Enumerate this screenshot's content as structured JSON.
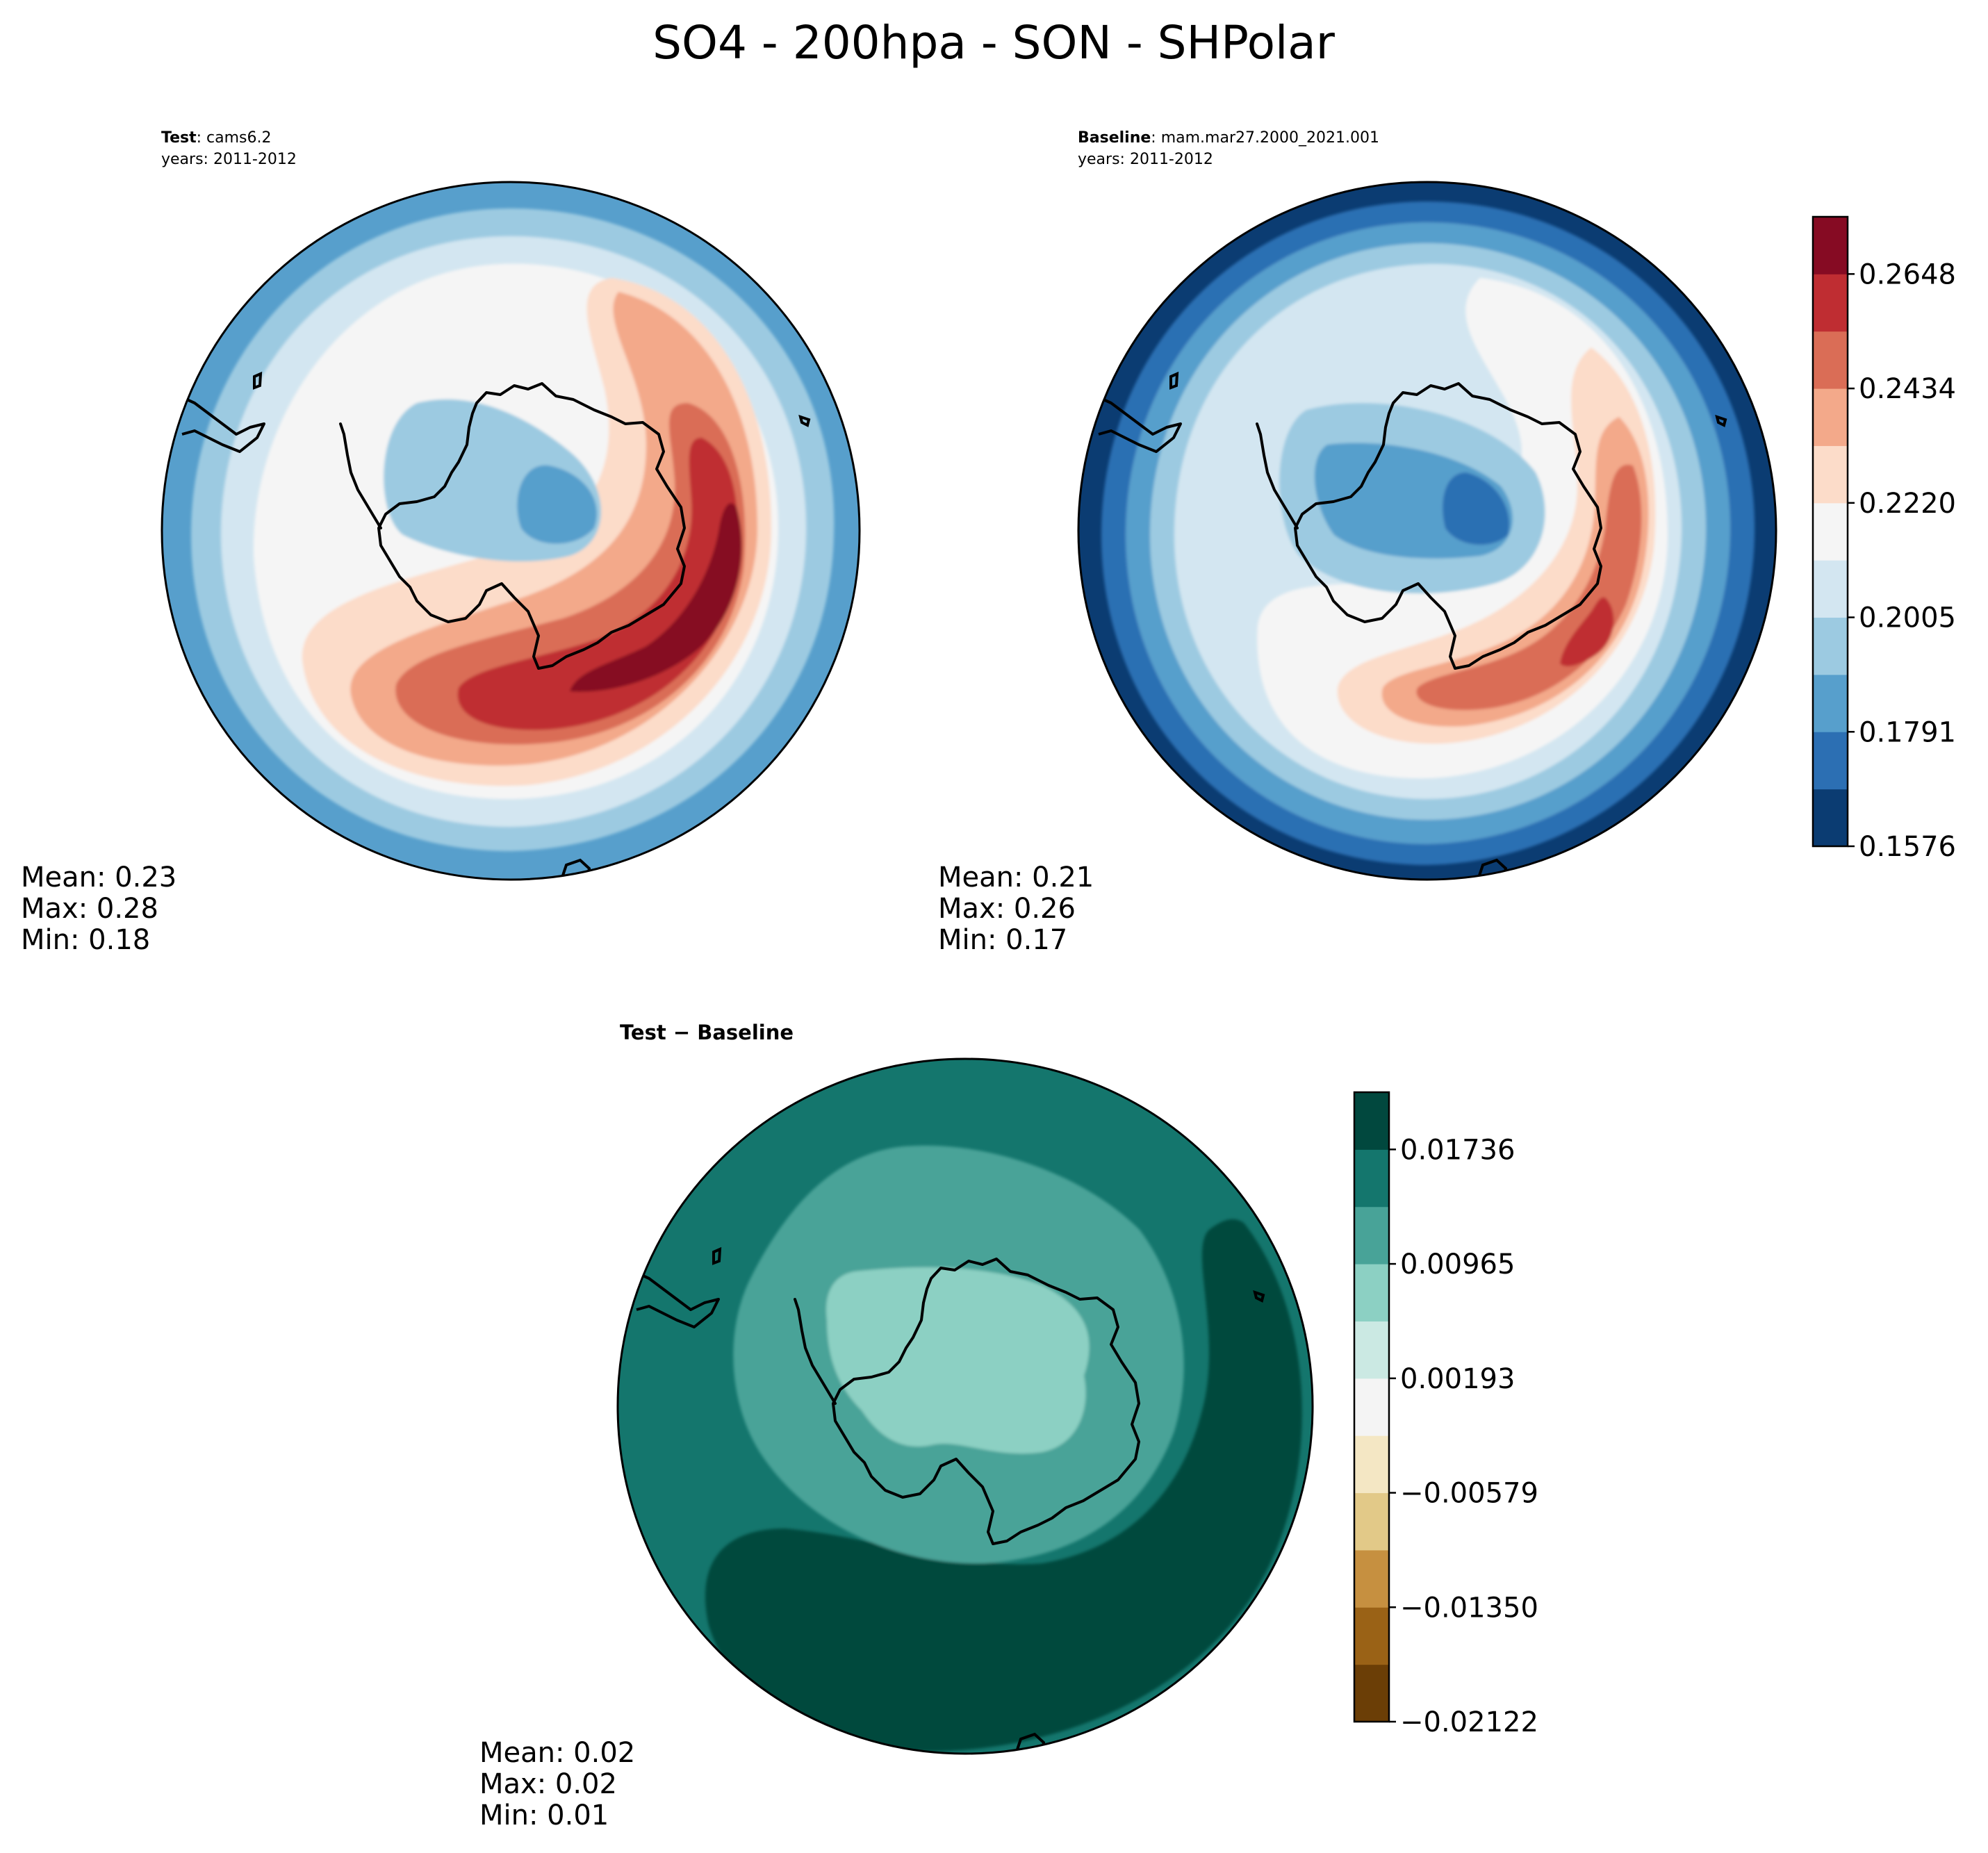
{
  "figure_title": "SO4 - 200hpa - SON - SHPolar",
  "panels": {
    "test": {
      "label_bold": "Test",
      "label_rest": ": cams6.2",
      "years": "years: 2011-2012",
      "mean": "Mean:  0.23",
      "max": "Max:  0.28",
      "min": "Min:  0.18"
    },
    "baseline": {
      "label_bold": "Baseline",
      "label_rest": ": mam.mar27.2000_2021.001",
      "years": "years: 2011-2012",
      "mean": "Mean:  0.21",
      "max": "Max:  0.26",
      "min": "Min:  0.17"
    },
    "diff": {
      "title": "Test − Baseline",
      "mean": "Mean:  0.02",
      "max": "Max:  0.02",
      "min": "Min:  0.01"
    }
  },
  "chart_data": [
    {
      "type": "heatmap",
      "projection": "south-polar-stereographic",
      "panel": "test",
      "title": "Test : cams6.2",
      "subtitle": "years: 2011-2012",
      "variable": "SO4",
      "level": "200hpa",
      "season": "SON",
      "mean": 0.23,
      "max": 0.28,
      "min": 0.18,
      "levels": [
        0.1576,
        0.1683,
        0.1791,
        0.1898,
        0.2005,
        0.2113,
        0.222,
        0.2327,
        0.2434,
        0.2541,
        0.2648,
        0.2755
      ],
      "colorbar": "shared-right"
    },
    {
      "type": "heatmap",
      "projection": "south-polar-stereographic",
      "panel": "baseline",
      "title": "Baseline : mam.mar27.2000_2021.001",
      "subtitle": "years: 2011-2012",
      "mean": 0.21,
      "max": 0.26,
      "min": 0.17,
      "levels": [
        0.1576,
        0.1683,
        0.1791,
        0.1898,
        0.2005,
        0.2113,
        0.222,
        0.2327,
        0.2434,
        0.2541,
        0.2648,
        0.2755
      ],
      "colorbar": {
        "ticks": [
          "0.1576",
          "0.1791",
          "0.2005",
          "0.2220",
          "0.2434",
          "0.2648"
        ],
        "colors": [
          "#0b3c72",
          "#2c6fb3",
          "#579fcc",
          "#9ccae1",
          "#d3e6f1",
          "#f5f5f5",
          "#fcdcc9",
          "#f3a98a",
          "#da6d56",
          "#bf2d32",
          "#860b23"
        ]
      }
    },
    {
      "type": "heatmap",
      "projection": "south-polar-stereographic",
      "panel": "difference",
      "title": "Test − Baseline",
      "mean": 0.02,
      "max": 0.02,
      "min": 0.01,
      "levels": [
        -0.02122,
        -0.01736,
        -0.0135,
        -0.00965,
        -0.00579,
        -0.00193,
        0.00193,
        0.00579,
        0.00965,
        0.0135,
        0.01736,
        0.02122
      ],
      "colorbar": {
        "ticks": [
          "−0.02122",
          "−0.01350",
          "−0.00579",
          "0.00193",
          "0.00965",
          "0.01736"
        ],
        "colors": [
          "#6b3e06",
          "#9a6216",
          "#c69040",
          "#e2c988",
          "#f4e7c4",
          "#f4f4f4",
          "#cbe9e3",
          "#8cd0c3",
          "#48a398",
          "#14766d",
          "#01483e"
        ]
      }
    }
  ]
}
